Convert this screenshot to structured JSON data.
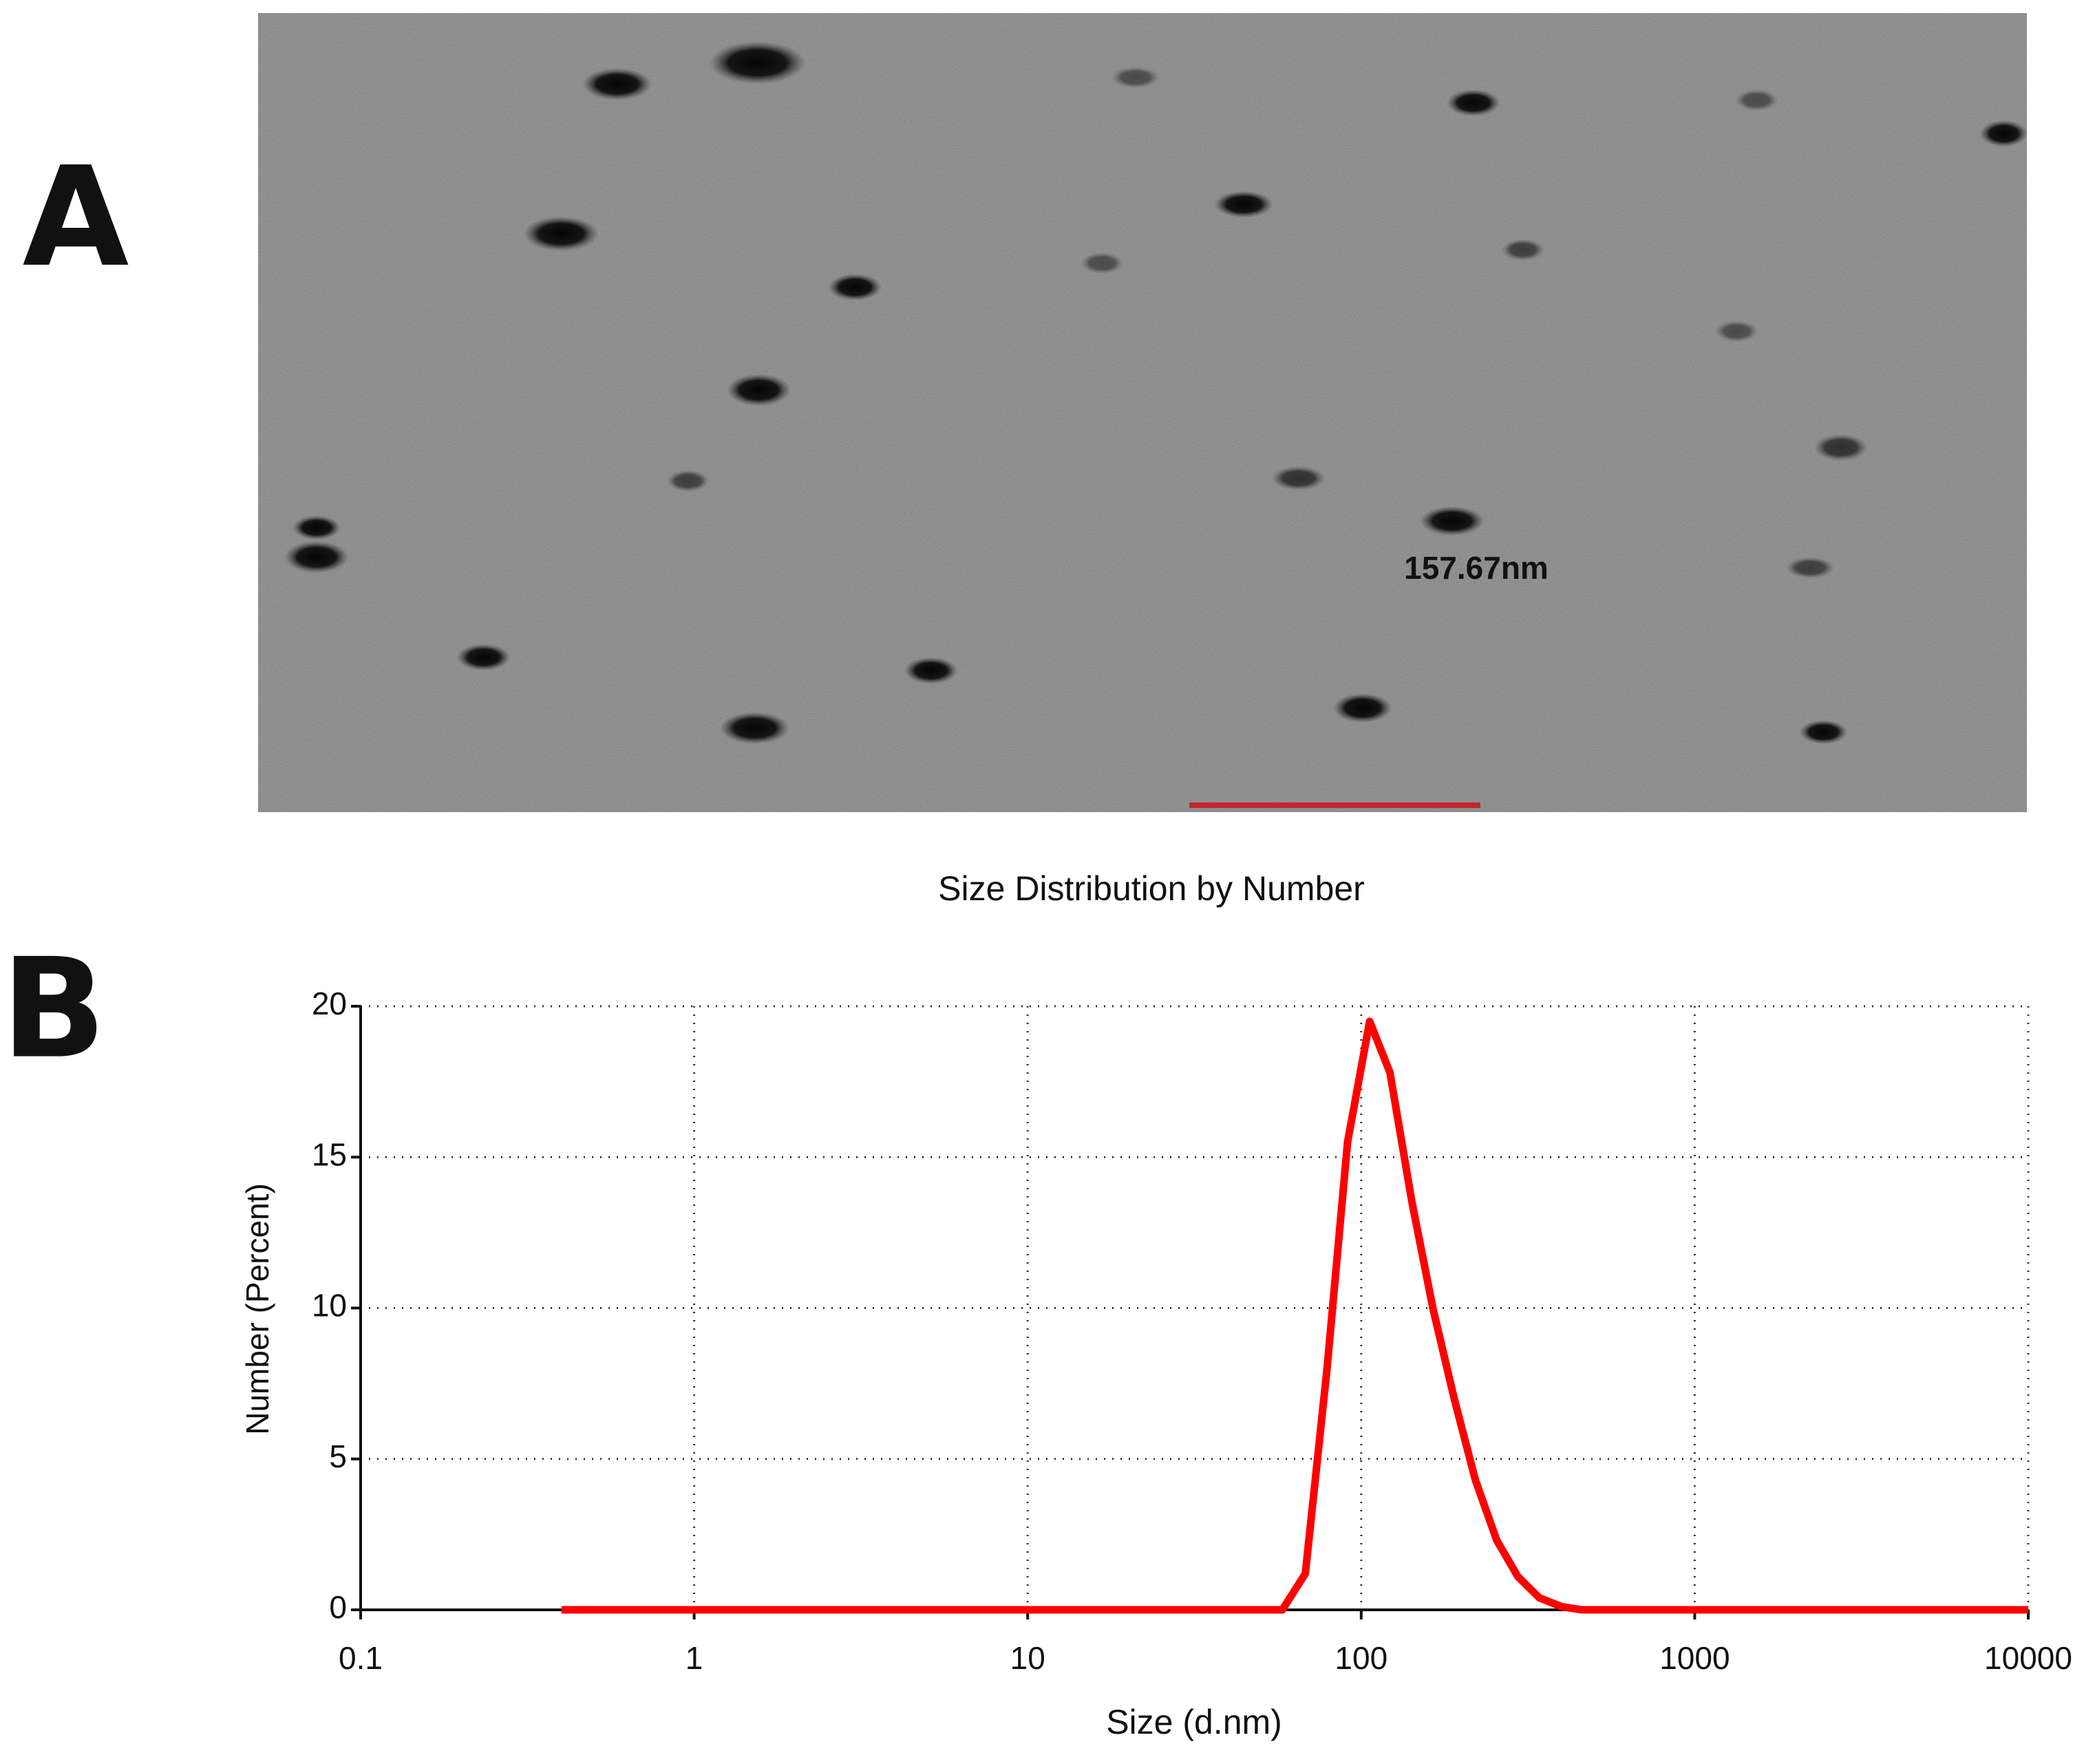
{
  "figure": {
    "panel_labels": [
      "A",
      "B"
    ],
    "image_annotation": "157.67nm"
  },
  "chart_data": {
    "type": "line",
    "title": "Size Distribution by Number",
    "x_label": "Size (d.nm)",
    "y_label": "Number (Percent)",
    "xscale": "log",
    "grid": true,
    "xlim": [
      0.1,
      10000
    ],
    "xticks": [
      0.1,
      1,
      10,
      100,
      1000,
      10000
    ],
    "ylim": [
      0,
      20
    ],
    "yticks": [
      0,
      5,
      10,
      15,
      20
    ],
    "x": [
      0.4,
      58,
      68,
      79,
      91,
      106,
      122,
      142,
      164,
      190,
      220,
      255,
      295,
      342,
      400,
      460,
      10000
    ],
    "series": [
      {
        "color": "#ff0000",
        "values": [
          0,
          0,
          1.2,
          8,
          15.5,
          19.5,
          17.8,
          13.5,
          10,
          7,
          4.3,
          2.3,
          1.1,
          0.4,
          0.1,
          0,
          0
        ]
      }
    ]
  }
}
